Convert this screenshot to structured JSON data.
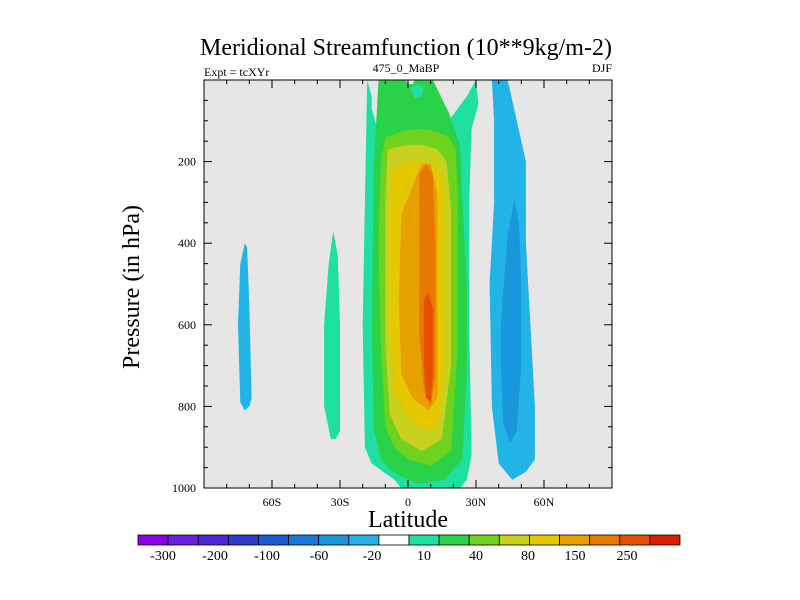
{
  "chart_data": {
    "type": "heatmap",
    "title": "Meridional Streamfunction (10**9kg/m-2)",
    "left_label": "Expt = tcXYr",
    "center_label": "475_0_MaBP",
    "right_label": "DJF",
    "xlabel": "Latitude",
    "ylabel": "Pressure (in hPa)",
    "xlim": [
      -90,
      90
    ],
    "ylim": [
      1000,
      0
    ],
    "grid": false,
    "x_ticks": [
      {
        "value": -60,
        "label": "60S"
      },
      {
        "value": -30,
        "label": "30S"
      },
      {
        "value": 0,
        "label": "0"
      },
      {
        "value": 30,
        "label": "30N"
      },
      {
        "value": 60,
        "label": "60N"
      }
    ],
    "y_ticks": [
      {
        "value": 200,
        "label": "200"
      },
      {
        "value": 400,
        "label": "400"
      },
      {
        "value": 600,
        "label": "600"
      },
      {
        "value": 800,
        "label": "800"
      },
      {
        "value": 1000,
        "label": "1000"
      }
    ],
    "missing_color": "#e6e6e6",
    "colorbar": {
      "labels": [
        "-300",
        "-200",
        "-100",
        "-60",
        "-20",
        "10",
        "40",
        "80",
        "150",
        "250"
      ],
      "colors": [
        "#8c00e6",
        "#6a1ee0",
        "#4a28d8",
        "#2e3ccc",
        "#1e5ad6",
        "#1478dc",
        "#1a96dc",
        "#22b4e6",
        "#ffffff",
        "#1ee0a0",
        "#2ad24a",
        "#6ed21e",
        "#c8d21e",
        "#e6c800",
        "#e6a000",
        "#e67800",
        "#e65000",
        "#dc1e00"
      ]
    },
    "regions": [
      {
        "name": "nh-negative-cell-outer",
        "color": "#22b4e6",
        "lat": [
          37,
          38,
          38,
          36,
          37,
          40,
          46,
          52,
          56,
          56,
          54,
          52,
          52,
          48,
          44,
          40,
          37
        ],
        "p": [
          0,
          100,
          300,
          500,
          800,
          940,
          980,
          960,
          930,
          800,
          600,
          400,
          200,
          100,
          0,
          0,
          0
        ]
      },
      {
        "name": "nh-negative-cell-inner",
        "color": "#1a96dc",
        "lat": [
          42,
          44,
          47,
          49,
          50,
          50,
          48,
          45,
          42,
          41,
          41,
          42
        ],
        "p": [
          520,
          380,
          290,
          360,
          500,
          700,
          860,
          890,
          840,
          700,
          600,
          520
        ]
      },
      {
        "name": "sh-positive-cell-10",
        "color": "#1ee0a0",
        "lat": [
          -18,
          -16,
          -16,
          -14,
          -12,
          -9,
          2,
          14,
          26,
          30,
          31,
          28,
          27,
          27,
          28,
          26,
          23,
          -3,
          -6,
          -11,
          -16,
          -19,
          -20,
          -19,
          -18
        ],
        "p": [
          0,
          40,
          70,
          110,
          120,
          130,
          160,
          130,
          40,
          0,
          60,
          120,
          300,
          600,
          920,
          980,
          1000,
          1000,
          980,
          960,
          940,
          900,
          600,
          300,
          0
        ]
      },
      {
        "name": "sh-positive-cell-40",
        "color": "#2ad24a",
        "lat": [
          -13,
          -6,
          5,
          11,
          18,
          23,
          24,
          26,
          26,
          24,
          16,
          4,
          -7,
          -12,
          -15,
          -16,
          -15,
          -13
        ],
        "p": [
          0,
          0,
          0,
          0,
          80,
          160,
          300,
          500,
          700,
          930,
          980,
          990,
          960,
          930,
          860,
          600,
          200,
          0
        ]
      },
      {
        "name": "sh-positive-cell-80",
        "color": "#6ed21e",
        "lat": [
          -10,
          -2,
          5,
          12,
          18,
          21,
          22,
          22,
          19,
          10,
          0,
          -6,
          -10,
          -12,
          -13,
          -12,
          -10
        ],
        "p": [
          140,
          125,
          120,
          125,
          140,
          170,
          300,
          650,
          910,
          945,
          930,
          900,
          850,
          650,
          400,
          200,
          140
        ]
      },
      {
        "name": "sh-positive-cell-150",
        "color": "#c8d21e",
        "lat": [
          -9,
          -1,
          7,
          13,
          17,
          19,
          19,
          15,
          6,
          -3,
          -8,
          -10,
          -10,
          -9
        ],
        "p": [
          170,
          160,
          160,
          170,
          200,
          320,
          700,
          880,
          910,
          880,
          820,
          650,
          300,
          170
        ]
      },
      {
        "name": "sh-positive-cell-250",
        "color": "#e6c800",
        "lat": [
          -7,
          0,
          7,
          12,
          15,
          16,
          16,
          13,
          7,
          -1,
          -6,
          -8,
          -8,
          -7
        ],
        "p": [
          220,
          200,
          200,
          210,
          240,
          340,
          720,
          850,
          860,
          820,
          760,
          600,
          320,
          220
        ]
      },
      {
        "name": "sh-positive-cell-350",
        "color": "#e6a000",
        "lat": [
          -3,
          6,
          10,
          13,
          13,
          13,
          9,
          2,
          -3,
          -4,
          -3
        ],
        "p": [
          330,
          205,
          205,
          280,
          500,
          780,
          810,
          780,
          720,
          540,
          330
        ]
      },
      {
        "name": "sh-positive-cell-core",
        "color": "#e67800",
        "lat": [
          5,
          8,
          11,
          12,
          12,
          10,
          7,
          5,
          5
        ],
        "p": [
          230,
          205,
          230,
          400,
          720,
          800,
          760,
          620,
          230
        ]
      },
      {
        "name": "sh-positive-cell-peak",
        "color": "#e65000",
        "lat": [
          7,
          9,
          11,
          11,
          10,
          8,
          7,
          7
        ],
        "p": [
          540,
          520,
          560,
          720,
          790,
          780,
          700,
          540
        ]
      },
      {
        "name": "sh-negative-island",
        "color": "#22b4e6",
        "lat": [
          -72,
          -71,
          -70,
          -69,
          -70,
          -72,
          -74,
          -75,
          -74,
          -72
        ],
        "p": [
          400,
          410,
          550,
          780,
          800,
          810,
          790,
          600,
          450,
          400
        ]
      },
      {
        "name": "sh-positive-island",
        "color": "#1ee0a0",
        "lat": [
          -33,
          -31,
          -30,
          -30,
          -32,
          -34,
          -37,
          -37,
          -35,
          -33
        ],
        "p": [
          370,
          430,
          600,
          860,
          880,
          880,
          800,
          600,
          450,
          370
        ]
      },
      {
        "name": "upper-gap-1",
        "color": "#e6e6e6",
        "lat": [
          -1,
          1,
          3,
          2,
          0,
          -1
        ],
        "p": [
          0,
          0,
          0,
          10,
          10,
          0
        ]
      },
      {
        "name": "upper-gap-2",
        "color": "#1ee0a0",
        "lat": [
          1,
          4,
          7,
          6,
          3,
          1
        ],
        "p": [
          20,
          10,
          20,
          40,
          45,
          20
        ]
      }
    ]
  }
}
